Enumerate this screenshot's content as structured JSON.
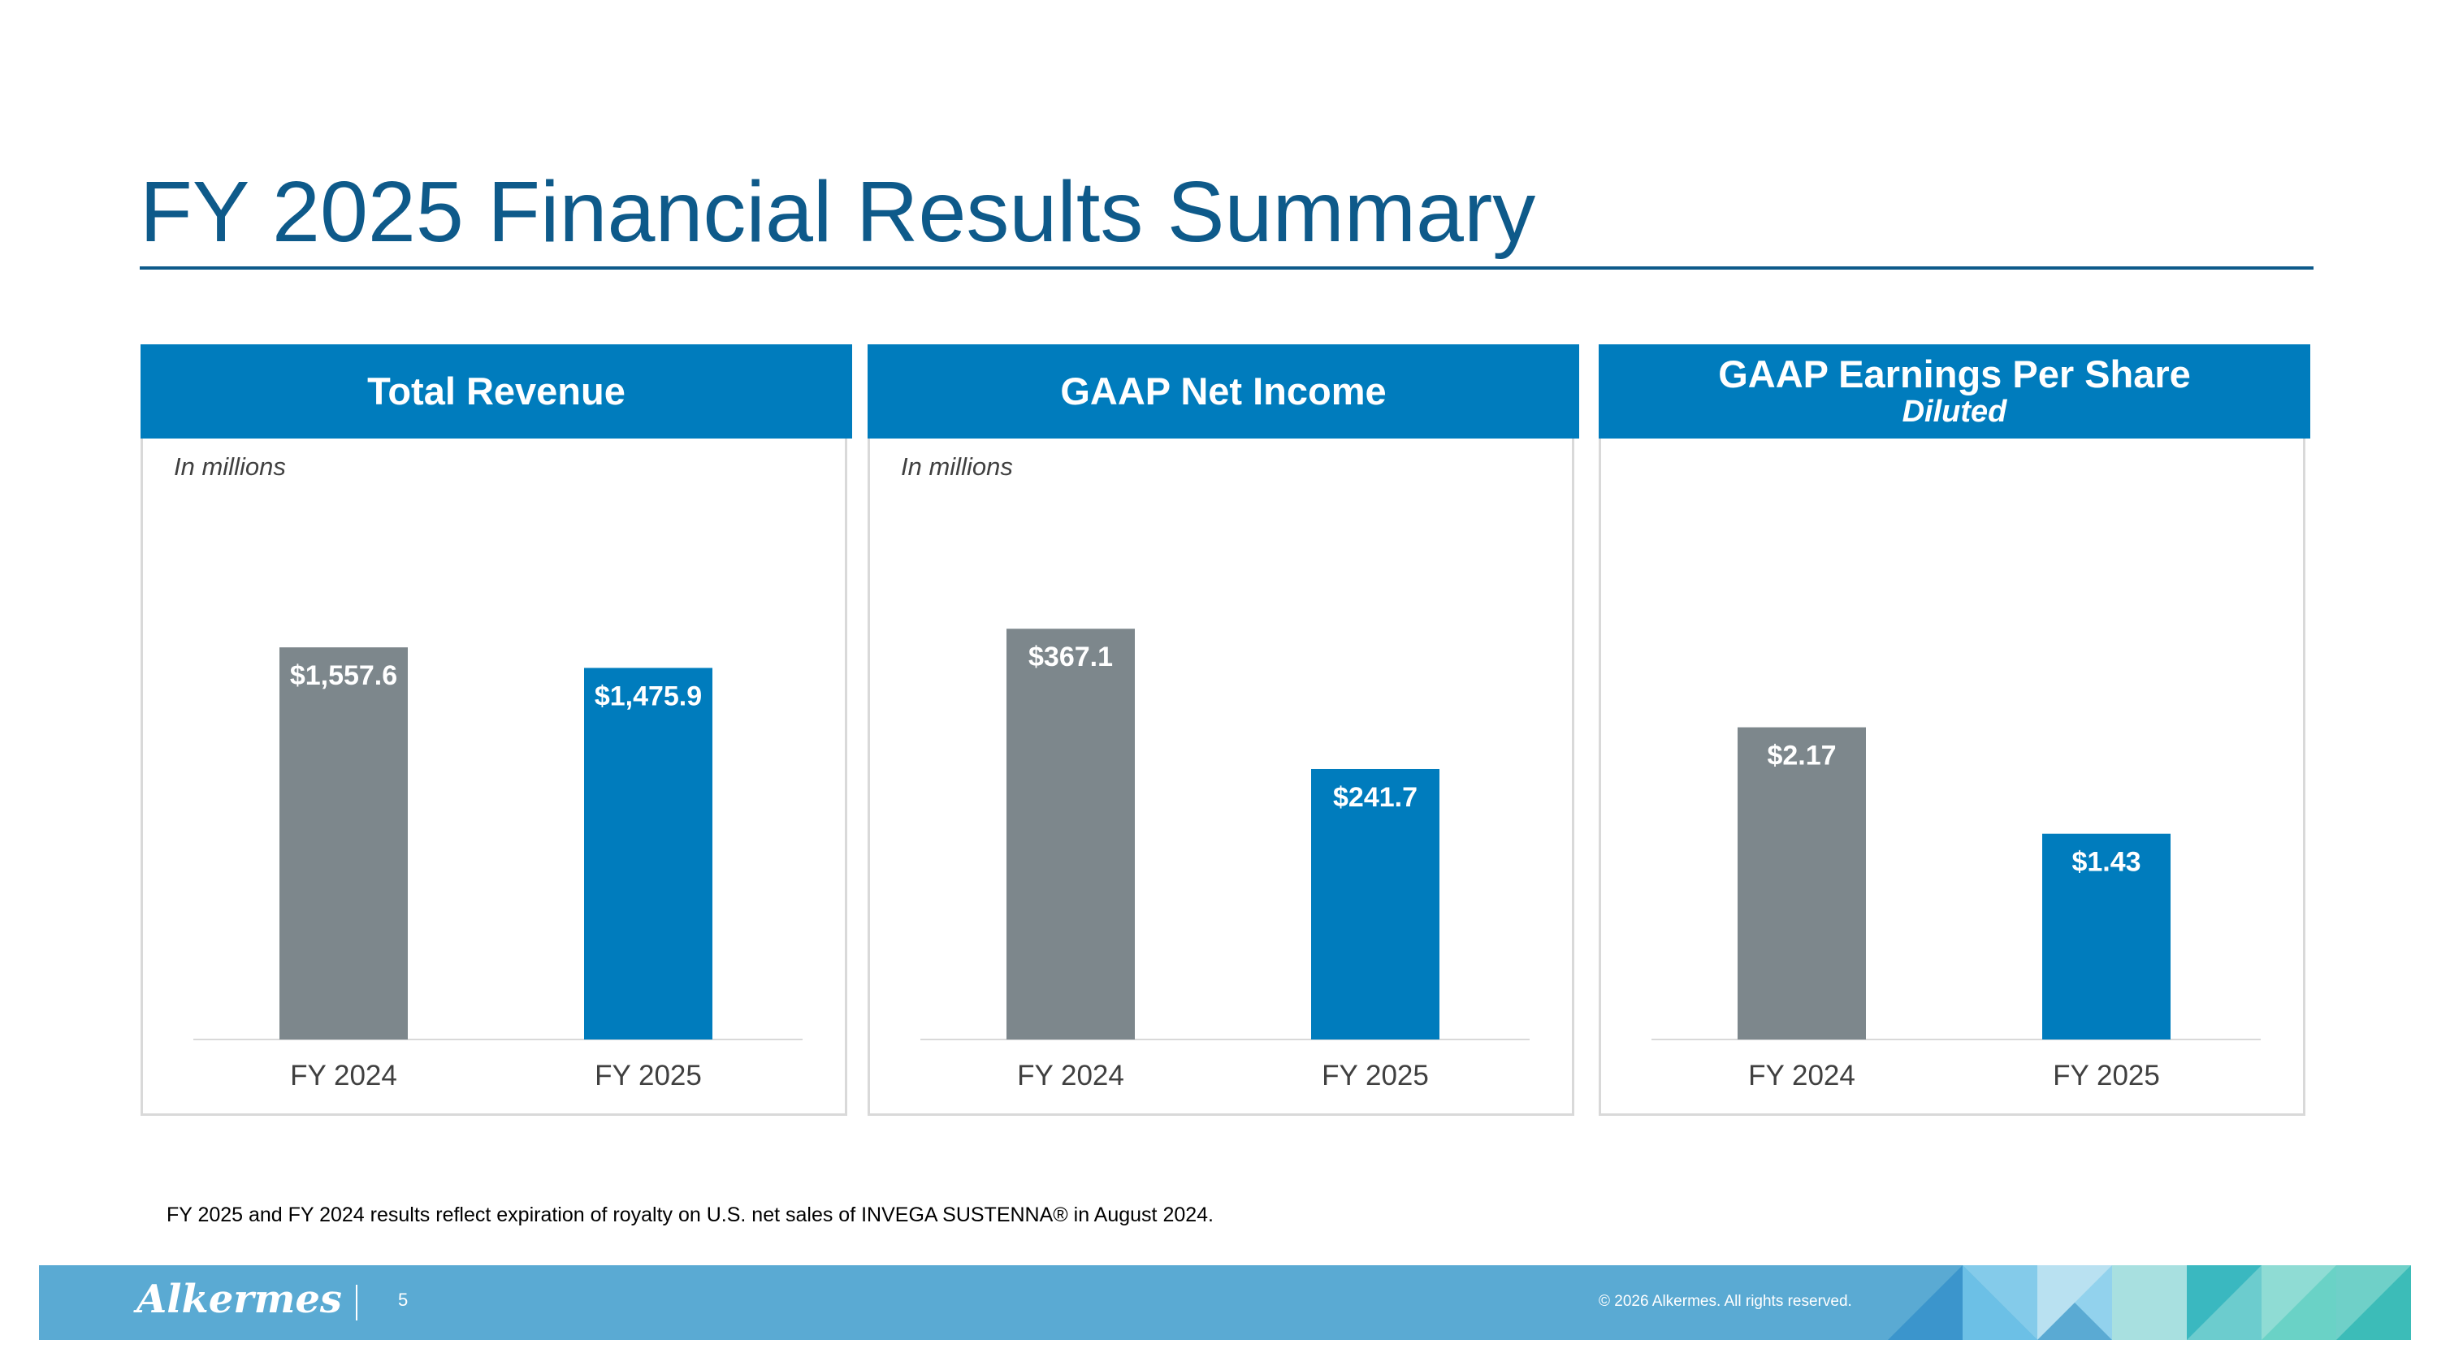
{
  "page": {
    "title": "FY 2025 Financial Results Summary",
    "footnote": "FY 2025 and FY 2024 results reflect expiration of royalty on U.S. net sales of INVEGA SUSTENNA® in August 2024.",
    "footer": {
      "logo": "Alkermes",
      "page_number": "5",
      "copyright": "© 2026 Alkermes. All rights reserved."
    }
  },
  "colors": {
    "title": "#0e5a8a",
    "header": "#007cbd",
    "bar_fy2024": "#7d878c",
    "bar_fy2025": "#007cbd",
    "footer_band": "#5aaad3"
  },
  "panels": [
    {
      "title": "Total Revenue",
      "subtitle": "",
      "unit_note": "In millions"
    },
    {
      "title": "GAAP Net Income",
      "subtitle": "",
      "unit_note": "In millions"
    },
    {
      "title": "GAAP Earnings Per Share",
      "subtitle": "Diluted",
      "unit_note": ""
    }
  ],
  "chart_data": [
    {
      "type": "bar",
      "title": "Total Revenue",
      "categories": [
        "FY 2024",
        "FY 2025"
      ],
      "values": [
        1557.6,
        1475.9
      ],
      "data_labels": [
        "$1,557.6",
        "$1,475.9"
      ],
      "ylim": [
        0,
        2000
      ],
      "grid": false,
      "legend": "none"
    },
    {
      "type": "bar",
      "title": "GAAP Net Income",
      "categories": [
        "FY 2024",
        "FY 2025"
      ],
      "values": [
        367.1,
        241.7
      ],
      "data_labels": [
        "$367.1",
        "$241.7"
      ],
      "ylim": [
        0,
        450
      ],
      "grid": false,
      "legend": "none"
    },
    {
      "type": "bar",
      "title": "GAAP Earnings Per Share",
      "subtitle": "Diluted",
      "categories": [
        "FY 2024",
        "FY 2025"
      ],
      "values": [
        2.17,
        1.43
      ],
      "data_labels": [
        "$2.17",
        "$1.43"
      ],
      "ylim": [
        0,
        3.5
      ],
      "grid": false,
      "legend": "none"
    }
  ]
}
